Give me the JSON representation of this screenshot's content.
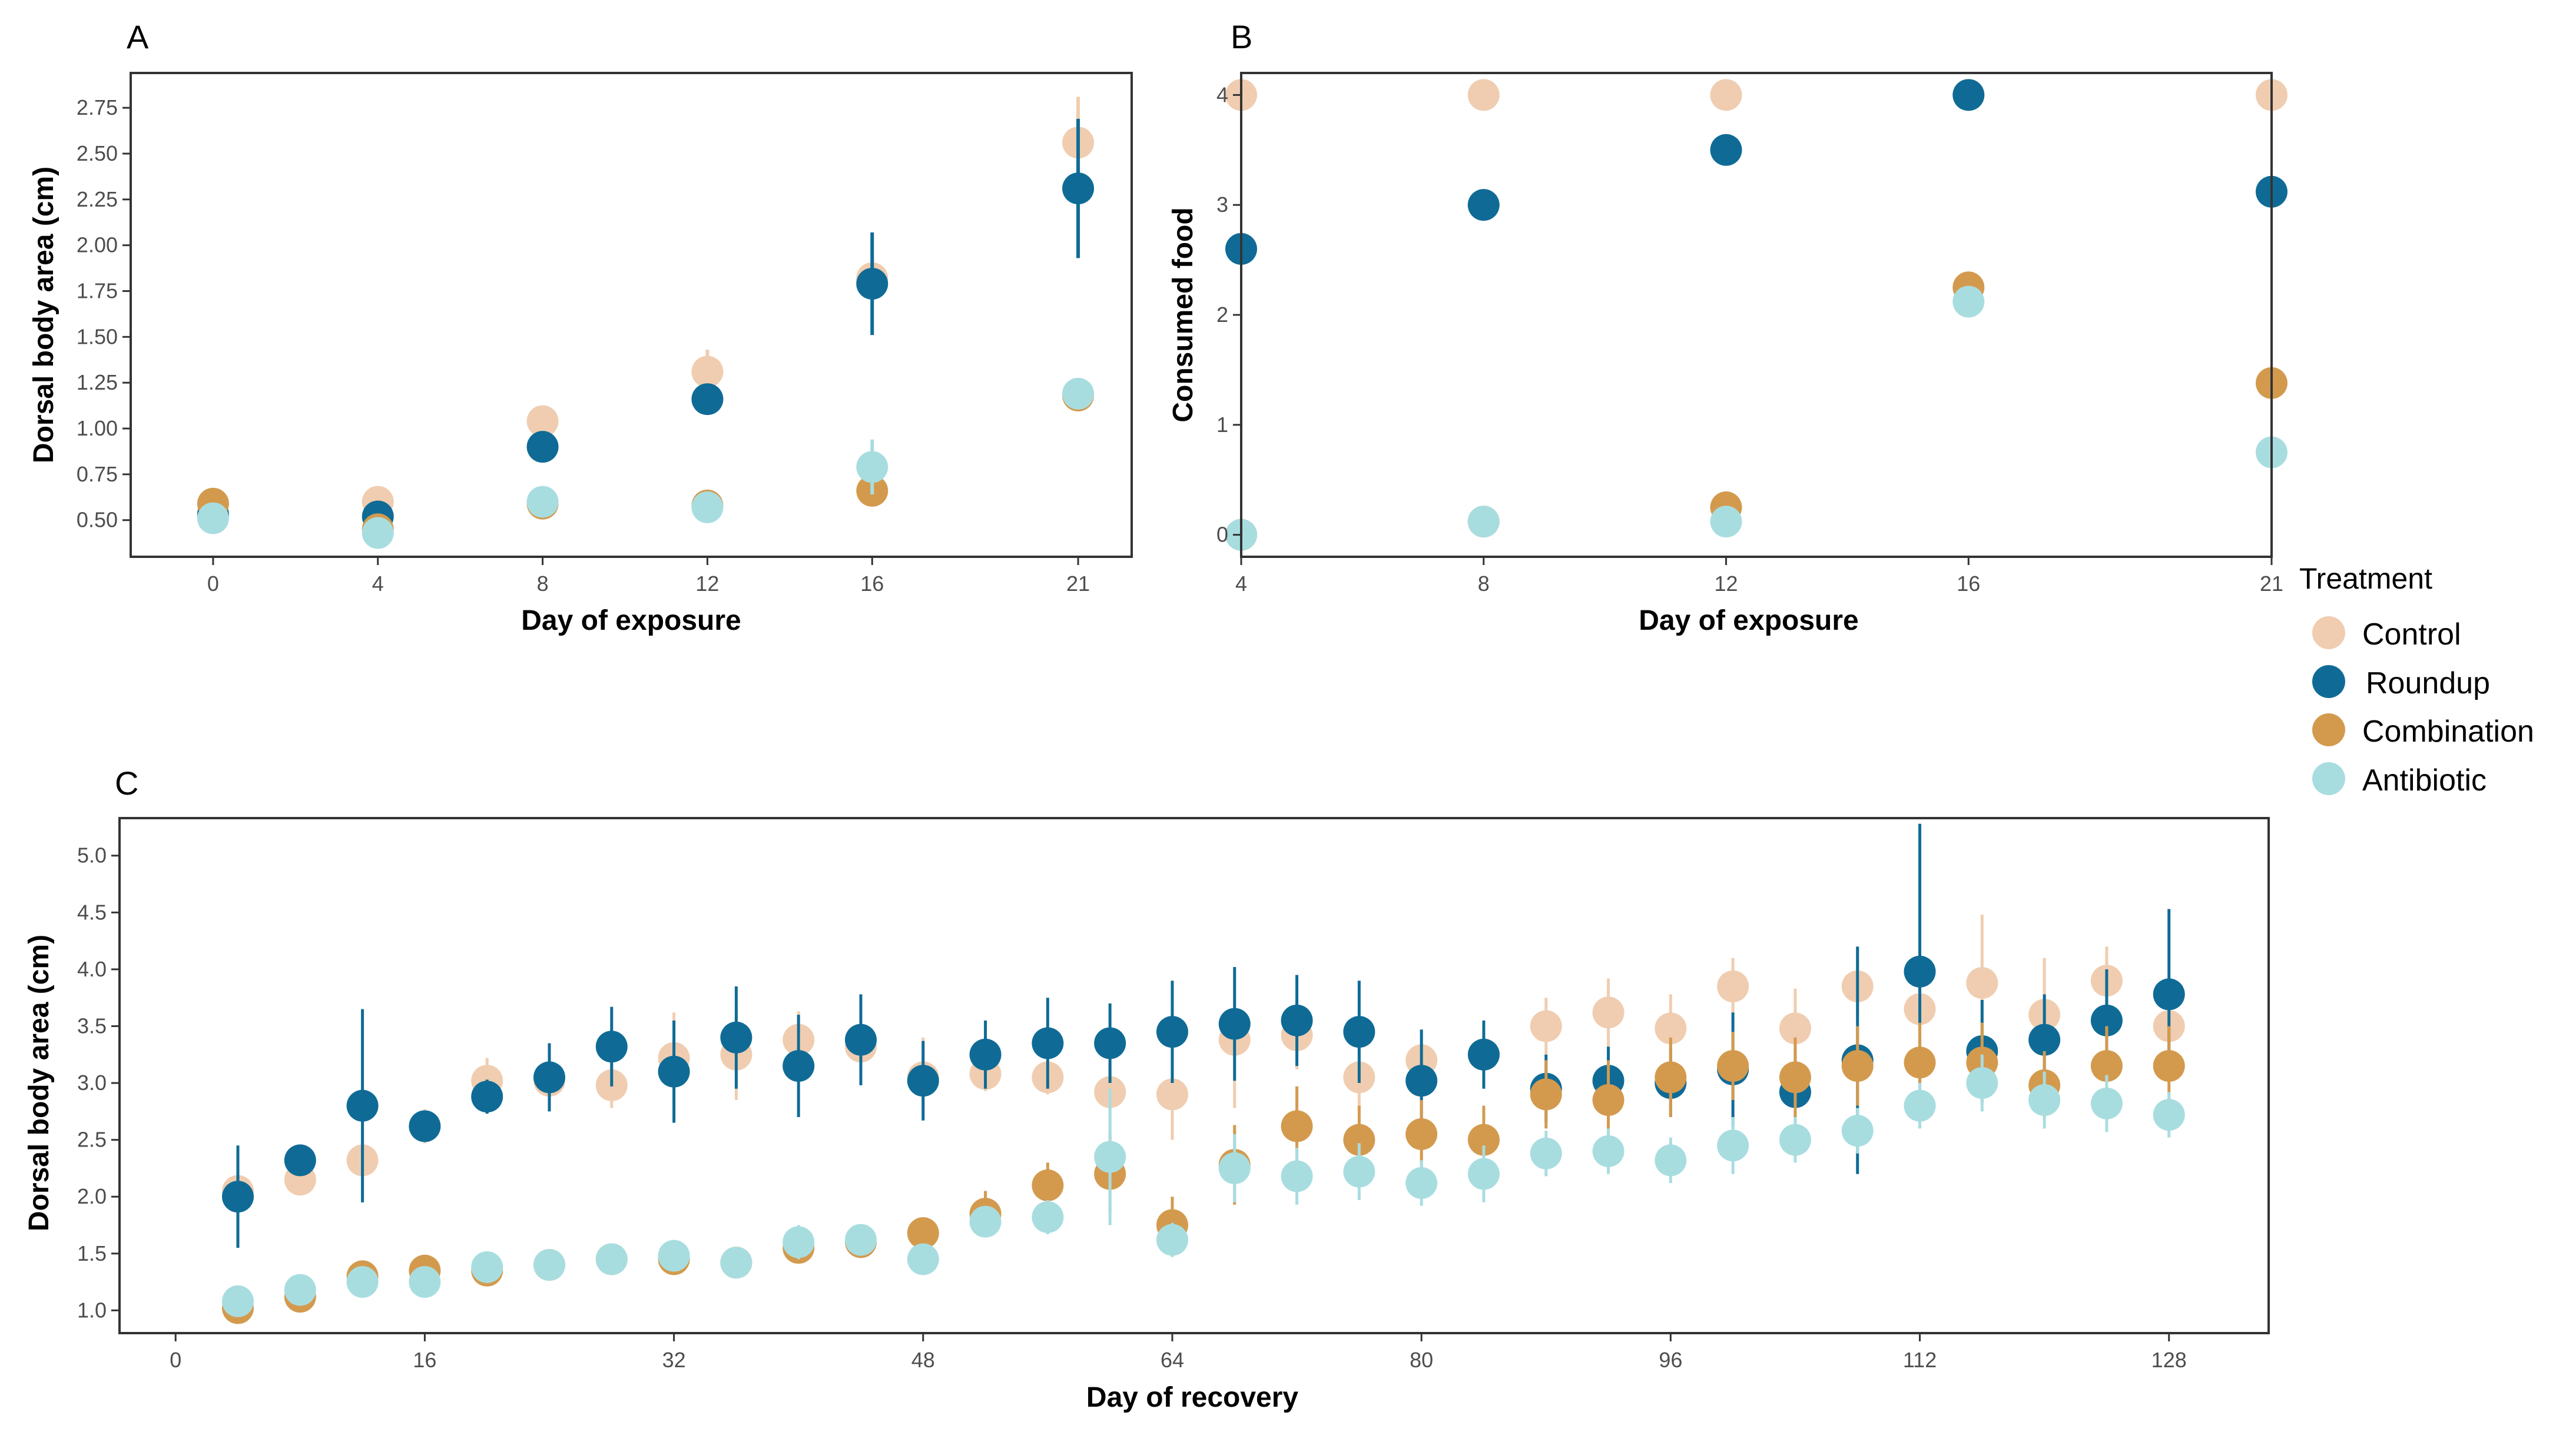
{
  "legend": {
    "title": "Treatment",
    "items": [
      {
        "label": "Control",
        "color": "#f0cdb0"
      },
      {
        "label": "Roundup",
        "color": "#0f6b96"
      },
      {
        "label": "Combination",
        "color": "#d39a4e"
      },
      {
        "label": "Antibiotic",
        "color": "#a8dde0"
      }
    ]
  },
  "chart_data": [
    {
      "panel": "A",
      "type": "scatter",
      "xlabel": "Day of exposure",
      "ylabel": "Dorsal body area (cm)",
      "xlim": [
        -2,
        22.3
      ],
      "ylim": [
        0.3,
        2.94
      ],
      "x_ticks": [
        0,
        4,
        8,
        12,
        16,
        21
      ],
      "x_tick_labels": [
        "0",
        "4",
        "8",
        "12",
        "16",
        "21"
      ],
      "y_ticks": [
        0.5,
        0.75,
        1.0,
        1.25,
        1.5,
        1.75,
        2.0,
        2.25,
        2.5,
        2.75
      ],
      "y_tick_labels": [
        "0.50",
        "0.75",
        "1.00",
        "1.25",
        "1.50",
        "1.75",
        "2.00",
        "2.25",
        "2.50",
        "2.75"
      ],
      "series": [
        {
          "name": "Control",
          "x": [
            0,
            4,
            8,
            12,
            16,
            21
          ],
          "y": [
            0.54,
            0.6,
            1.04,
            1.31,
            1.82,
            2.56
          ],
          "err": [
            0.03,
            0.04,
            0.05,
            0.12,
            0.1,
            0.25
          ]
        },
        {
          "name": "Roundup",
          "x": [
            0,
            4,
            8,
            12,
            16,
            21
          ],
          "y": [
            0.53,
            0.52,
            0.9,
            1.16,
            1.79,
            2.31
          ],
          "err": [
            0.03,
            0.05,
            0.06,
            0.06,
            0.28,
            0.38
          ]
        },
        {
          "name": "Combination",
          "x": [
            0,
            4,
            8,
            12,
            16,
            21
          ],
          "y": [
            0.59,
            0.45,
            0.59,
            0.58,
            0.66,
            1.18
          ],
          "err": [
            0.03,
            0.03,
            0.03,
            0.03,
            0.04,
            0.05
          ]
        },
        {
          "name": "Antibiotic",
          "x": [
            0,
            4,
            8,
            12,
            16,
            21
          ],
          "y": [
            0.51,
            0.43,
            0.6,
            0.57,
            0.79,
            1.19
          ],
          "err": [
            0.03,
            0.04,
            0.04,
            0.04,
            0.15,
            0.05
          ]
        }
      ]
    },
    {
      "panel": "B",
      "type": "scatter",
      "xlabel": "Day of exposure",
      "ylabel": "Consumed food",
      "xlim": [
        4,
        21
      ],
      "ylim": [
        -0.2,
        4.2
      ],
      "x_ticks": [
        4,
        8,
        12,
        16,
        21
      ],
      "x_tick_labels": [
        "4",
        "8",
        "12",
        "16",
        "21"
      ],
      "y_ticks": [
        0,
        1,
        2,
        3,
        4
      ],
      "y_tick_labels": [
        "0",
        "1",
        "2",
        "3",
        "4"
      ],
      "series": [
        {
          "name": "Control",
          "x": [
            4,
            8,
            12,
            16,
            21
          ],
          "y": [
            4.0,
            4.0,
            4.0,
            4.0,
            4.0
          ]
        },
        {
          "name": "Roundup",
          "x": [
            4,
            8,
            12,
            16,
            21
          ],
          "y": [
            2.6,
            3.0,
            3.5,
            4.0,
            3.12
          ]
        },
        {
          "name": "Combination",
          "x": [
            4,
            8,
            12,
            16,
            21
          ],
          "y": [
            0.0,
            0.12,
            0.25,
            2.25,
            1.38
          ]
        },
        {
          "name": "Antibiotic",
          "x": [
            4,
            8,
            12,
            16,
            21
          ],
          "y": [
            0.0,
            0.12,
            0.12,
            2.12,
            0.75
          ]
        }
      ]
    },
    {
      "panel": "C",
      "type": "scatter",
      "xlabel": "Day of recovery",
      "ylabel": "Dorsal body area (cm)",
      "xlim": [
        -3.6,
        134.4
      ],
      "ylim": [
        0.8,
        5.33
      ],
      "x_ticks": [
        0,
        16,
        32,
        48,
        64,
        80,
        96,
        112,
        128
      ],
      "x_tick_labels": [
        "0",
        "16",
        "32",
        "48",
        "64",
        "80",
        "96",
        "112",
        "128"
      ],
      "y_ticks": [
        1.0,
        1.5,
        2.0,
        2.5,
        3.0,
        3.5,
        4.0,
        4.5,
        5.0
      ],
      "y_tick_labels": [
        "1.0",
        "1.5",
        "2.0",
        "2.5",
        "3.0",
        "3.5",
        "4.0",
        "4.5",
        "5.0"
      ],
      "x": [
        4,
        8,
        12,
        16,
        20,
        24,
        28,
        32,
        36,
        40,
        44,
        48,
        52,
        56,
        60,
        64,
        68,
        72,
        76,
        80,
        84,
        88,
        92,
        96,
        100,
        104,
        108,
        112,
        116,
        120,
        124,
        128
      ],
      "series": [
        {
          "name": "Control",
          "y": [
            2.05,
            2.15,
            2.32,
            2.62,
            3.02,
            3.02,
            2.98,
            3.22,
            3.25,
            3.38,
            3.32,
            3.05,
            3.08,
            3.05,
            2.92,
            2.9,
            3.38,
            3.42,
            3.05,
            3.2,
            3.25,
            3.5,
            3.62,
            3.48,
            3.85,
            3.48,
            3.85,
            3.65,
            3.88,
            3.6,
            3.9,
            3.5
          ],
          "err": [
            0.15,
            0.1,
            0.35,
            0.15,
            0.2,
            0.2,
            0.2,
            0.4,
            0.4,
            0.25,
            0.2,
            0.35,
            0.15,
            0.15,
            0.5,
            0.4,
            0.6,
            0.3,
            0.25,
            0.2,
            0.25,
            0.25,
            0.3,
            0.3,
            0.25,
            0.35,
            0.25,
            0.3,
            0.6,
            0.5,
            0.3,
            0.25
          ]
        },
        {
          "name": "Roundup",
          "y": [
            2.0,
            2.32,
            2.8,
            2.62,
            2.88,
            3.05,
            3.32,
            3.1,
            3.4,
            3.15,
            3.38,
            3.02,
            3.25,
            3.35,
            3.35,
            3.45,
            3.52,
            3.55,
            3.45,
            3.02,
            3.25,
            2.95,
            3.02,
            3.0,
            3.12,
            2.92,
            3.2,
            3.98,
            3.28,
            3.38,
            3.55,
            3.78
          ],
          "err": [
            0.45,
            0.12,
            0.85,
            0.1,
            0.15,
            0.3,
            0.35,
            0.45,
            0.45,
            0.45,
            0.4,
            0.35,
            0.3,
            0.4,
            0.35,
            0.45,
            0.5,
            0.4,
            0.45,
            0.45,
            0.3,
            0.3,
            0.3,
            0.3,
            0.5,
            0.4,
            1.0,
            1.3,
            0.45,
            0.4,
            0.45,
            0.75
          ]
        },
        {
          "name": "Combination",
          "y": [
            1.02,
            1.12,
            1.3,
            1.35,
            1.35,
            1.4,
            1.45,
            1.45,
            1.42,
            1.55,
            1.6,
            1.68,
            1.85,
            2.1,
            2.2,
            1.75,
            2.28,
            2.62,
            2.5,
            2.55,
            2.5,
            2.9,
            2.85,
            3.05,
            3.15,
            3.05,
            3.15,
            3.18,
            3.18,
            2.98,
            3.15,
            3.15
          ],
          "err": [
            0.05,
            0.05,
            0.1,
            0.1,
            0.1,
            0.1,
            0.1,
            0.1,
            0.1,
            0.1,
            0.1,
            0.1,
            0.2,
            0.2,
            0.35,
            0.25,
            0.35,
            0.35,
            0.3,
            0.3,
            0.3,
            0.3,
            0.35,
            0.35,
            0.3,
            0.35,
            0.35,
            0.35,
            0.35,
            0.3,
            0.35,
            0.35
          ]
        },
        {
          "name": "Antibiotic",
          "y": [
            1.08,
            1.18,
            1.25,
            1.25,
            1.38,
            1.4,
            1.45,
            1.48,
            1.42,
            1.6,
            1.62,
            1.45,
            1.78,
            1.82,
            2.35,
            1.62,
            2.25,
            2.18,
            2.22,
            2.12,
            2.2,
            2.38,
            2.4,
            2.32,
            2.45,
            2.5,
            2.58,
            2.8,
            3.0,
            2.85,
            2.82,
            2.72
          ],
          "err": [
            0.05,
            0.08,
            0.1,
            0.1,
            0.1,
            0.1,
            0.1,
            0.1,
            0.1,
            0.15,
            0.1,
            0.1,
            0.1,
            0.15,
            0.6,
            0.15,
            0.3,
            0.25,
            0.25,
            0.2,
            0.25,
            0.2,
            0.2,
            0.2,
            0.25,
            0.2,
            0.2,
            0.2,
            0.25,
            0.25,
            0.25,
            0.2
          ]
        }
      ]
    }
  ]
}
